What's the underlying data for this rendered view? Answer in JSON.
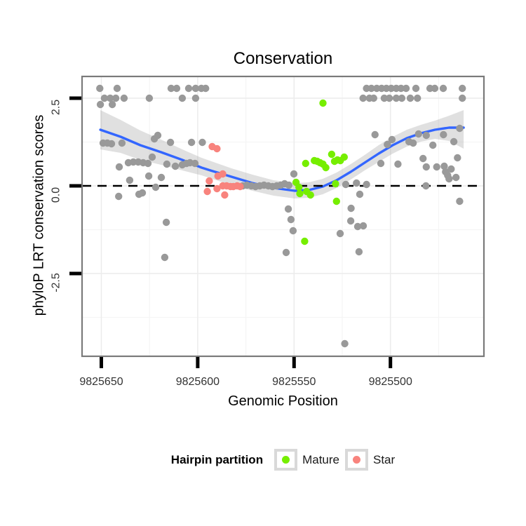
{
  "title": "Conservation",
  "x_axis": {
    "title": "Genomic Position",
    "ticks": [
      "9825650",
      "9825600",
      "9825550",
      "9825500"
    ]
  },
  "y_axis": {
    "title": "phyloP LRT conservation scores",
    "ticks": [
      "2.5",
      "0.0",
      "-2.5"
    ]
  },
  "legend": {
    "title": "Hairpin partition",
    "items": [
      {
        "label": "Mature",
        "color": "#76EE00"
      },
      {
        "label": "Star",
        "color": "#F8837D"
      }
    ]
  },
  "chart_data": {
    "type": "scatter",
    "title": "Conservation",
    "xlabel": "Genomic Position",
    "ylabel": "phyloP LRT conservation scores",
    "x_ticks": [
      9825650,
      9825600,
      9825550,
      9825500
    ],
    "y_ticks": [
      2.5,
      0,
      -2.5
    ],
    "xlim": [
      9825660,
      9825451.5
    ],
    "ylim": [
      3.12,
      -4.86
    ],
    "zero_line": 0,
    "grid": {
      "major_color": "#ececec",
      "minor_color": "#f5f5f5",
      "minor_x": [
        9825625,
        9825575,
        9825525,
        9825475
      ],
      "minor_y": [
        1.25,
        -1.25,
        -3.75
      ]
    },
    "colors": {
      "other": "#999999",
      "mature": "#76EE00",
      "star": "#F8837D",
      "smooth_line": "#3366FF",
      "ribbon": "#999999",
      "panel_border": "#7a7a7a",
      "tick": "#000000"
    },
    "series": [
      {
        "name": "other",
        "color": "#999999",
        "points": [
          [
            9825650.8,
            2.78
          ],
          [
            9825641.8,
            2.78
          ],
          [
            9825613.8,
            2.78
          ],
          [
            9825610.9,
            2.78
          ],
          [
            9825604.7,
            2.78
          ],
          [
            9825601.1,
            2.78
          ],
          [
            9825598.1,
            2.78
          ],
          [
            9825595.9,
            2.78
          ],
          [
            9825512.4,
            2.78
          ],
          [
            9825509.9,
            2.78
          ],
          [
            9825507.1,
            2.78
          ],
          [
            9825504.6,
            2.78
          ],
          [
            9825502.1,
            2.78
          ],
          [
            9825499.6,
            2.78
          ],
          [
            9825497,
            2.78
          ],
          [
            9825494.5,
            2.78
          ],
          [
            9825491.9,
            2.78
          ],
          [
            9825486.8,
            2.78
          ],
          [
            9825479.5,
            2.78
          ],
          [
            9825477,
            2.78
          ],
          [
            9825472.6,
            2.78
          ],
          [
            9825462.7,
            2.78
          ],
          [
            9825648.4,
            2.5
          ],
          [
            9825645.4,
            2.5
          ],
          [
            9825642.5,
            2.5
          ],
          [
            9825638.2,
            2.5
          ],
          [
            9825625.1,
            2.5
          ],
          [
            9825608,
            2.5
          ],
          [
            9825601.1,
            2.5
          ],
          [
            9825514.2,
            2.5
          ],
          [
            9825510.9,
            2.5
          ],
          [
            9825508.7,
            2.5
          ],
          [
            9825503.2,
            2.5
          ],
          [
            9825500.6,
            2.5
          ],
          [
            9825497,
            2.5
          ],
          [
            9825494.1,
            2.5
          ],
          [
            9825489.7,
            2.5
          ],
          [
            9825486,
            2.5
          ],
          [
            9825462.7,
            2.5
          ],
          [
            9825650.5,
            2.32
          ],
          [
            9825644.3,
            2.32
          ],
          [
            9825649.1,
            1.22
          ],
          [
            9825646.9,
            1.22
          ],
          [
            9825644.7,
            1.2
          ],
          [
            9825639.3,
            1.22
          ],
          [
            9825622.5,
            1.34
          ],
          [
            9825620.7,
            1.44
          ],
          [
            9825614.1,
            1.24
          ],
          [
            9825603.2,
            1.24
          ],
          [
            9825597.6,
            1.24
          ],
          [
            9825640.7,
            0.54
          ],
          [
            9825636,
            0.66
          ],
          [
            9825633.4,
            0.68
          ],
          [
            9825630.9,
            0.68
          ],
          [
            9825628.3,
            0.66
          ],
          [
            9825625.8,
            0.64
          ],
          [
            9825623.6,
            0.82
          ],
          [
            9825616,
            0.62
          ],
          [
            9825611.6,
            0.56
          ],
          [
            9825608,
            0.6
          ],
          [
            9825605.8,
            0.64
          ],
          [
            9825604,
            0.66
          ],
          [
            9825601.4,
            0.64
          ],
          [
            9825635.3,
            0.16
          ],
          [
            9825630.5,
            -0.24
          ],
          [
            9825628.7,
            -0.2
          ],
          [
            9825625.4,
            0.28
          ],
          [
            9825618.9,
            0.24
          ],
          [
            9825641,
            -0.3
          ],
          [
            9825621.8,
            -0.04
          ],
          [
            9825616.3,
            -1.04
          ],
          [
            9825617.1,
            -2.04
          ],
          [
            9825576.6,
            0
          ],
          [
            9825574.4,
            0.02
          ],
          [
            9825572.2,
            0
          ],
          [
            9825570,
            -0.02
          ],
          [
            9825567.8,
            0
          ],
          [
            9825565.6,
            0.02
          ],
          [
            9825563.4,
            0
          ],
          [
            9825561.2,
            -0.02
          ],
          [
            9825559,
            0
          ],
          [
            9825556.9,
            0.02
          ],
          [
            9825554.9,
            0.06
          ],
          [
            9825552.7,
            0.02
          ],
          [
            9825550.1,
            0.34
          ],
          [
            9825553,
            -0.66
          ],
          [
            9825551.6,
            -0.96
          ],
          [
            9825550.5,
            -1.28
          ],
          [
            9825554.1,
            -1.9
          ],
          [
            9825523.7,
            -4.5
          ],
          [
            9825523.2,
            0.04
          ],
          [
            9825517.6,
            0.08
          ],
          [
            9825512.4,
            0.04
          ],
          [
            9825515.9,
            -0.24
          ],
          [
            9825520.4,
            -0.64
          ],
          [
            9825520.6,
            -1
          ],
          [
            9825517,
            -1.16
          ],
          [
            9825514.1,
            -1.14
          ],
          [
            9825526.1,
            -1.36
          ],
          [
            9825516.3,
            -1.88
          ],
          [
            9825508,
            1.46
          ],
          [
            9825501.6,
            1.18
          ],
          [
            9825505,
            0.64
          ],
          [
            9825496.1,
            0.62
          ],
          [
            9825499.2,
            1.32
          ],
          [
            9825490.4,
            1.26
          ],
          [
            9825488.2,
            1.22
          ],
          [
            9825485.4,
            1.48
          ],
          [
            9825481.4,
            1.44
          ],
          [
            9825478,
            1.16
          ],
          [
            9825472.5,
            1.46
          ],
          [
            9825467.1,
            1.26
          ],
          [
            9825464.1,
            1.64
          ],
          [
            9825483.1,
            0.78
          ],
          [
            9825481.4,
            0.54
          ],
          [
            9825476,
            0.54
          ],
          [
            9825472.1,
            0.56
          ],
          [
            9825471.4,
            0.4
          ],
          [
            9825468.5,
            0.48
          ],
          [
            9825470.3,
            0.3
          ],
          [
            9825469.6,
            0.2
          ],
          [
            9825466,
            0.24
          ],
          [
            9825465.2,
            0.8
          ],
          [
            9825481.6,
            0
          ],
          [
            9825464.1,
            -0.44
          ]
        ]
      },
      {
        "name": "mature",
        "color": "#76EE00",
        "points": [
          [
            9825535,
            2.36
          ],
          [
            9825544,
            0.64
          ],
          [
            9825539.5,
            0.72
          ],
          [
            9825538,
            0.7
          ],
          [
            9825536.5,
            0.66
          ],
          [
            9825535,
            0.62
          ],
          [
            9825533.5,
            0.52
          ],
          [
            9825530.5,
            0.9
          ],
          [
            9825529,
            0.7
          ],
          [
            9825527.5,
            0.74
          ],
          [
            9825526,
            0.72
          ],
          [
            9825524,
            0.82
          ],
          [
            9825549,
            0.1
          ],
          [
            9825547.5,
            -0.04
          ],
          [
            9825547,
            -0.22
          ],
          [
            9825543.5,
            -0.16
          ],
          [
            9825541.5,
            -0.26
          ],
          [
            9825528.5,
            0.06
          ],
          [
            9825528,
            -0.44
          ],
          [
            9825544.5,
            -1.58
          ]
        ]
      },
      {
        "name": "star",
        "color": "#F8837D",
        "points": [
          [
            9825592.5,
            1.12
          ],
          [
            9825590,
            1.06
          ],
          [
            9825587,
            0.34
          ],
          [
            9825589.5,
            0.28
          ],
          [
            9825594,
            0.14
          ],
          [
            9825595,
            -0.16
          ],
          [
            9825590,
            -0.08
          ],
          [
            9825586,
            -0.26
          ],
          [
            9825587,
            0
          ],
          [
            9825585,
            0
          ],
          [
            9825583,
            -0.02
          ],
          [
            9825581.5,
            -0.02
          ],
          [
            9825579.5,
            0
          ],
          [
            9825578,
            -0.02
          ]
        ]
      }
    ],
    "smooth": {
      "color": "#3366FF",
      "ribbon_color": "#999999",
      "ribbon_opacity": 0.3,
      "line": [
        [
          9825650.5,
          1.6
        ],
        [
          9825640,
          1.4
        ],
        [
          9825629.8,
          1.16
        ],
        [
          9825619,
          0.96
        ],
        [
          9825608,
          0.74
        ],
        [
          9825598,
          0.52
        ],
        [
          9825593.4,
          0.44
        ],
        [
          9825582.5,
          0.26
        ],
        [
          9825571.6,
          0.08
        ],
        [
          9825560.6,
          -0.06
        ],
        [
          9825549.7,
          -0.14
        ],
        [
          9825542.4,
          -0.12
        ],
        [
          9825535.1,
          -0.02
        ],
        [
          9825527.9,
          0.16
        ],
        [
          9825520.6,
          0.4
        ],
        [
          9825513.4,
          0.66
        ],
        [
          9825506.1,
          0.92
        ],
        [
          9825498.8,
          1.16
        ],
        [
          9825491.5,
          1.36
        ],
        [
          9825484.2,
          1.5
        ],
        [
          9825476.9,
          1.6
        ],
        [
          9825469.6,
          1.66
        ],
        [
          9825462,
          1.66
        ]
      ],
      "ribbon": [
        [
          9825650.5,
          2.16,
          1.04
        ],
        [
          9825640,
          1.88,
          0.94
        ],
        [
          9825629.8,
          1.58,
          0.74
        ],
        [
          9825619,
          1.32,
          0.6
        ],
        [
          9825608,
          1.04,
          0.44
        ],
        [
          9825598,
          0.8,
          0.3
        ],
        [
          9825582.5,
          0.5,
          0.02
        ],
        [
          9825571.6,
          0.32,
          -0.14
        ],
        [
          9825560.6,
          0.16,
          -0.28
        ],
        [
          9825549.7,
          0.08,
          -0.36
        ],
        [
          9825542.4,
          0.1,
          -0.34
        ],
        [
          9825535.1,
          0.2,
          -0.24
        ],
        [
          9825527.9,
          0.38,
          -0.06
        ],
        [
          9825520.6,
          0.62,
          0.18
        ],
        [
          9825513.4,
          0.88,
          0.44
        ],
        [
          9825506.1,
          1.16,
          0.68
        ],
        [
          9825498.8,
          1.4,
          0.92
        ],
        [
          9825491.5,
          1.6,
          1.12
        ],
        [
          9825484.2,
          1.74,
          1.26
        ],
        [
          9825476.9,
          1.86,
          1.34
        ],
        [
          9825469.6,
          2,
          1.28
        ],
        [
          9825462,
          2.16,
          1.06
        ]
      ]
    }
  }
}
